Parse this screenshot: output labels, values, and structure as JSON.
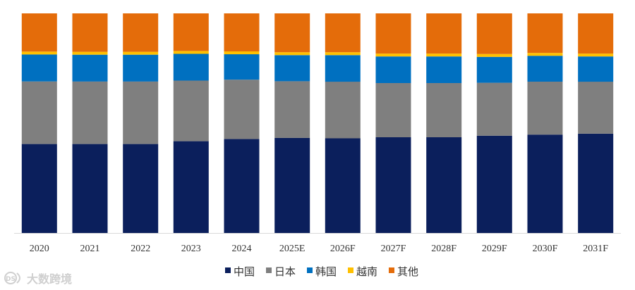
{
  "chart_data": {
    "type": "bar",
    "stacked": true,
    "normalized": true,
    "categories": [
      "2020",
      "2021",
      "2022",
      "2023",
      "2024",
      "2025E",
      "2026F",
      "2027F",
      "2028F",
      "2029F",
      "2030F",
      "2031F"
    ],
    "series": [
      {
        "name": "中国",
        "color": "#0b1f5c",
        "values": [
          40.5,
          40.5,
          40.5,
          41.8,
          42.8,
          43.3,
          43.1,
          43.6,
          43.6,
          44.3,
          44.8,
          45.2
        ]
      },
      {
        "name": "日本",
        "color": "#7f7f7f",
        "values": [
          28.5,
          28.5,
          28.5,
          27.6,
          27.0,
          25.8,
          25.8,
          24.7,
          24.7,
          24.1,
          24.1,
          23.7
        ]
      },
      {
        "name": "韩国",
        "color": "#0070c0",
        "values": [
          12.3,
          12.2,
          12.2,
          12.2,
          11.6,
          11.9,
          12.1,
          12.1,
          12.1,
          11.8,
          11.8,
          11.5
        ]
      },
      {
        "name": "越南",
        "color": "#ffc000",
        "values": [
          1.3,
          1.3,
          1.3,
          1.3,
          1.3,
          1.3,
          1.3,
          1.3,
          1.3,
          1.3,
          1.3,
          1.3
        ]
      },
      {
        "name": "其他",
        "color": "#e46c0a",
        "values": [
          17.4,
          17.5,
          17.5,
          17.1,
          17.3,
          17.7,
          17.7,
          18.3,
          18.3,
          18.5,
          18.0,
          18.3
        ]
      }
    ],
    "ylim": [
      0,
      100
    ],
    "legend_position": "bottom",
    "grid": false
  },
  "watermark": {
    "text": "大数跨境",
    "logo_text": "DS"
  }
}
